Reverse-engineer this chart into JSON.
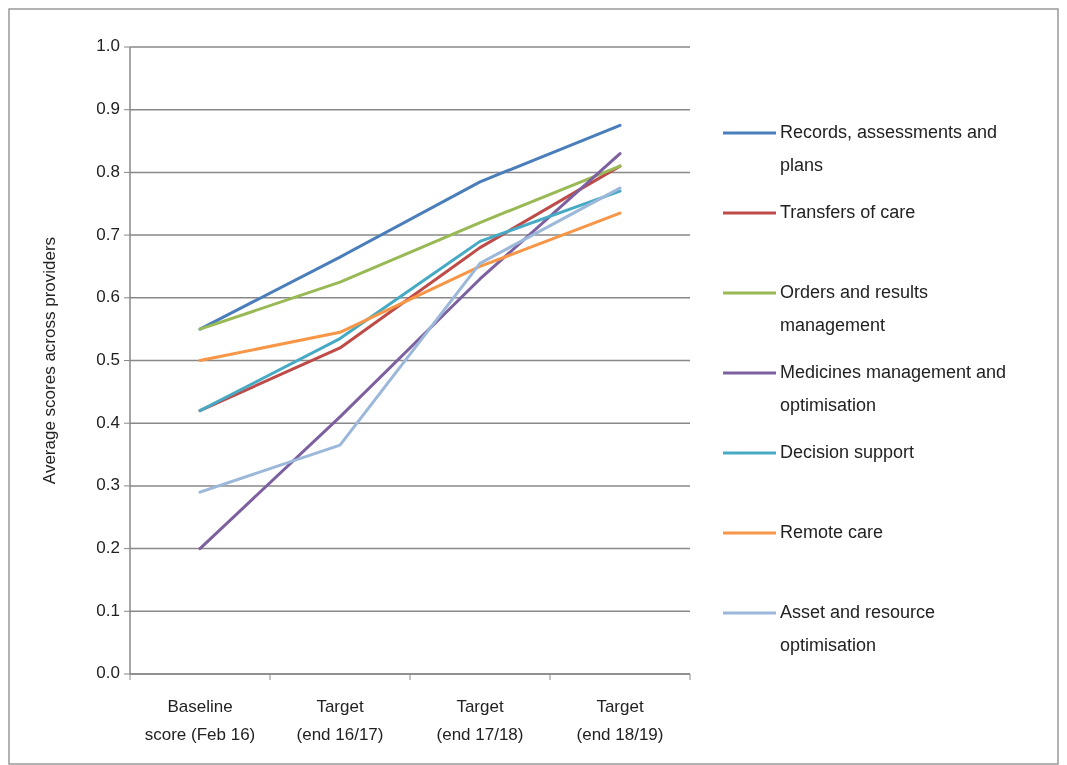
{
  "chart_data": {
    "type": "line",
    "ylabel": "Average scores across providers",
    "categories": [
      "Baseline\nscore (Feb 16)",
      "Target\n(end 16/17)",
      "Target\n(end 17/18)",
      "Target\n(end 18/19)"
    ],
    "ylim": [
      0,
      1
    ],
    "yticks": [
      {
        "value": 0,
        "label": "0.0"
      },
      {
        "value": 0.1,
        "label": "0.1"
      },
      {
        "value": 0.2,
        "label": "0.2"
      },
      {
        "value": 0.3,
        "label": "0.3"
      },
      {
        "value": 0.4,
        "label": "0.4"
      },
      {
        "value": 0.5,
        "label": "0.5"
      },
      {
        "value": 0.6,
        "label": "0.6"
      },
      {
        "value": 0.7,
        "label": "0.7"
      },
      {
        "value": 0.8,
        "label": "0.8"
      },
      {
        "value": 0.9,
        "label": "0.9"
      },
      {
        "value": 1,
        "label": "1.0"
      }
    ],
    "grid": "y",
    "legend": "right",
    "marker": "none",
    "line_style": "solid",
    "series": [
      {
        "name": "Records, assessments and plans",
        "color": "#4a7ebb",
        "values": [
          0.55,
          0.665,
          0.785,
          0.875
        ]
      },
      {
        "name": "Transfers of care",
        "color": "#be4b48",
        "values": [
          0.42,
          0.52,
          0.68,
          0.81
        ]
      },
      {
        "name": "Orders and results management",
        "color": "#98b954",
        "values": [
          0.55,
          0.625,
          0.72,
          0.81
        ]
      },
      {
        "name": "Medicines management and optimisation",
        "color": "#7d60a0",
        "values": [
          0.2,
          0.41,
          0.63,
          0.83
        ]
      },
      {
        "name": "Decision support",
        "color": "#46aac5",
        "values": [
          0.42,
          0.535,
          0.69,
          0.77
        ]
      },
      {
        "name": "Remote care",
        "color": "#f79646",
        "values": [
          0.5,
          0.545,
          0.65,
          0.735
        ]
      },
      {
        "name": "Asset and resource optimisation",
        "color": "#9bb7d9",
        "values": [
          0.29,
          0.365,
          0.655,
          0.775
        ]
      }
    ]
  }
}
